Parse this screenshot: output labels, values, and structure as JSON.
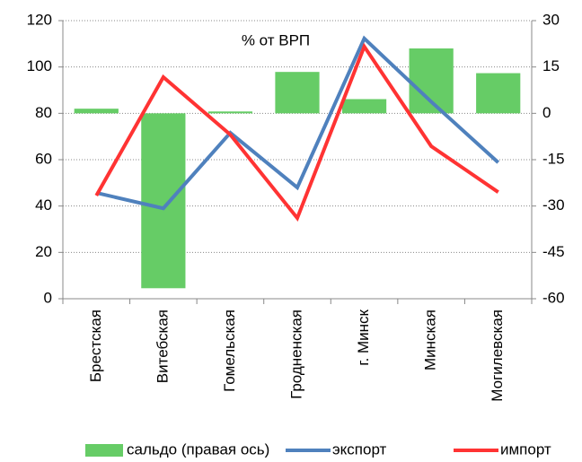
{
  "chart_data": {
    "type": "bar_line",
    "annotation": "% от ВРП",
    "categories": [
      "Брестская",
      "Витебская",
      "Гомельская",
      "Гродненская",
      "г. Минск",
      "Минская",
      "Могилевская"
    ],
    "series": [
      {
        "name": "сальдо (правая ось)",
        "type": "bar",
        "axis": "y2",
        "color": "#66cc66",
        "values": [
          1.5,
          -56.6,
          0.6,
          13.4,
          4.6,
          21,
          13
        ]
      },
      {
        "name": "экспорт",
        "type": "line",
        "axis": "y",
        "color": "#4f81bd",
        "values": [
          45.7,
          39,
          71.6,
          48,
          112.3,
          85,
          58.8
        ]
      },
      {
        "name": "импорт",
        "type": "line",
        "axis": "y",
        "color": "#ff3333",
        "values": [
          44.5,
          95.6,
          70.8,
          34.8,
          108.8,
          65.8,
          46
        ]
      }
    ],
    "ylim": [
      0,
      120
    ],
    "yticks": [
      0,
      20,
      40,
      60,
      80,
      100,
      120
    ],
    "y2lim": [
      -60,
      30
    ],
    "y2ticks": [
      -60,
      -45,
      -30,
      -15,
      0,
      15,
      30
    ],
    "grid": true,
    "legend": "bottom"
  }
}
